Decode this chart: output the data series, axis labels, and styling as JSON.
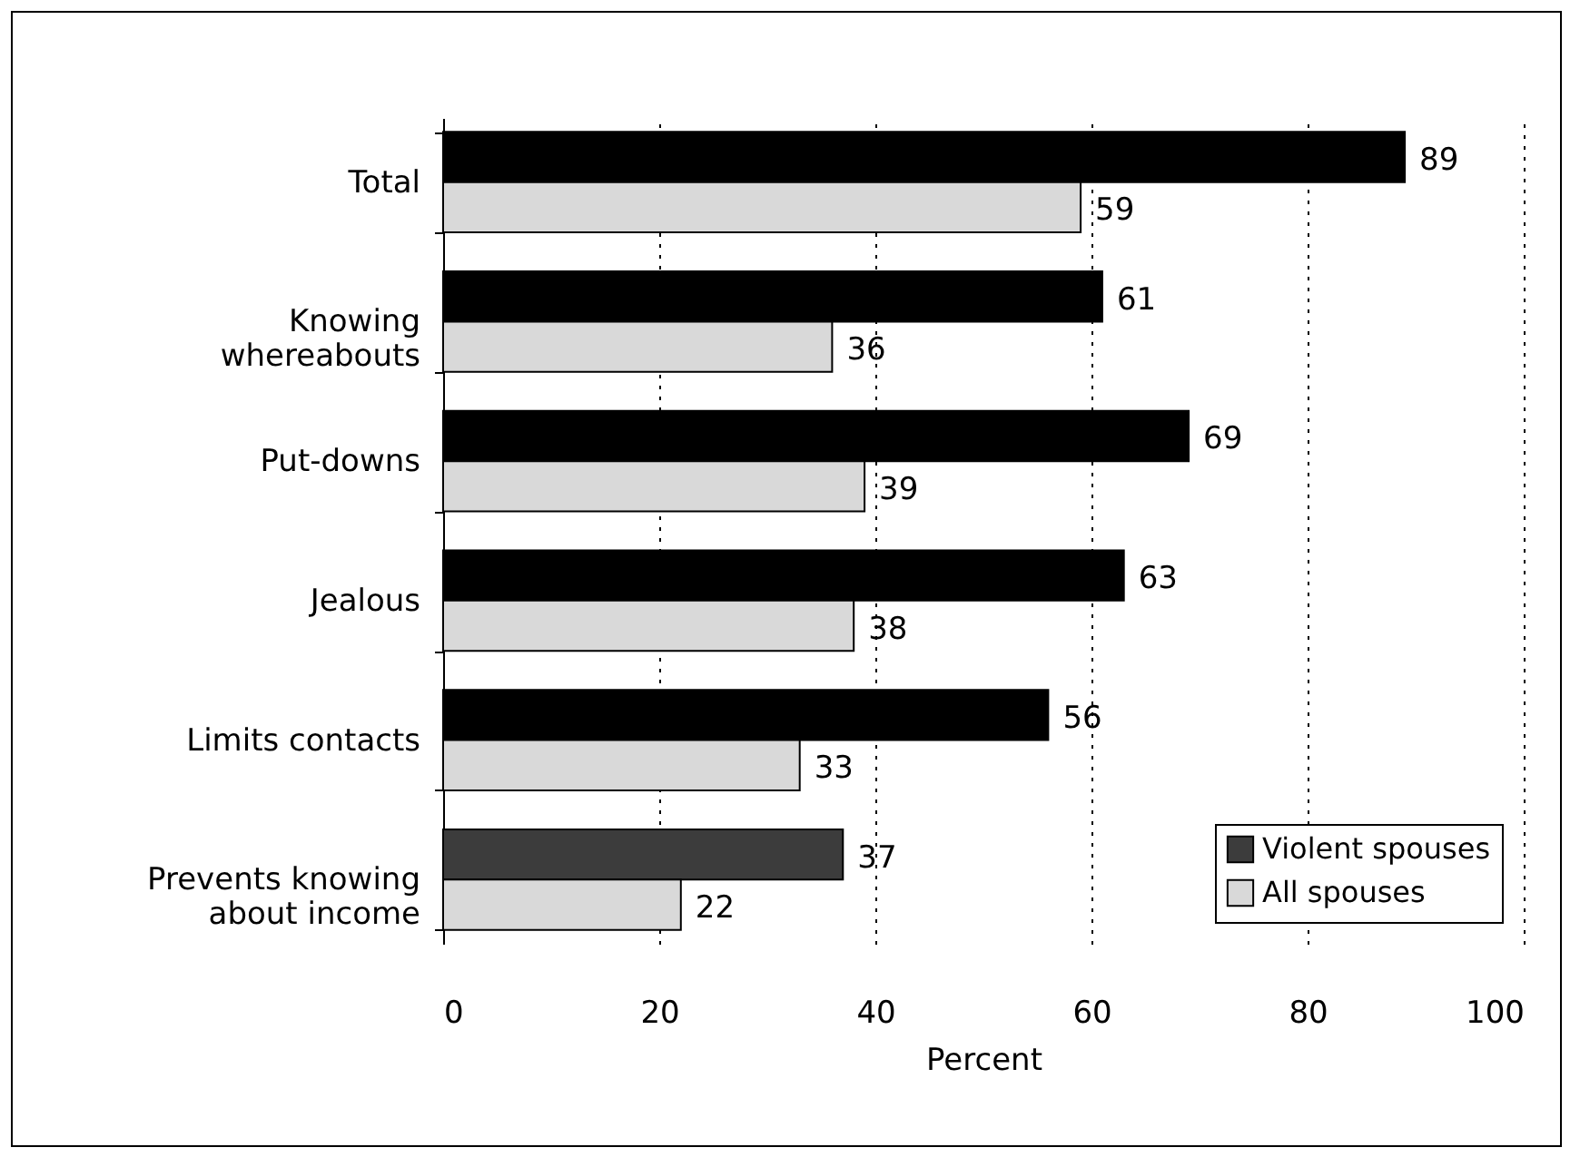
{
  "chart_data": {
    "type": "bar",
    "orientation": "horizontal",
    "xlabel": "Percent",
    "categories": [
      "Total",
      "Knowing\nwhereabouts",
      "Put-downs",
      "Jealous",
      "Limits contacts",
      "Prevents knowing\nabout income"
    ],
    "series": [
      {
        "name": "Violent spouses",
        "color": "#3c3c3c",
        "colors": [
          "#000000",
          "#000000",
          "#000000",
          "#000000",
          "#000000",
          "#3c3c3c"
        ],
        "values": [
          89,
          61,
          69,
          63,
          56,
          37
        ]
      },
      {
        "name": "All spouses",
        "color": "#d9d9d9",
        "values": [
          59,
          36,
          39,
          38,
          33,
          22
        ]
      }
    ],
    "xlim": [
      0,
      100
    ],
    "xticks": [
      0,
      20,
      40,
      60,
      80,
      100
    ],
    "grid": "x",
    "legend": "bottom right",
    "data_labels": true
  }
}
